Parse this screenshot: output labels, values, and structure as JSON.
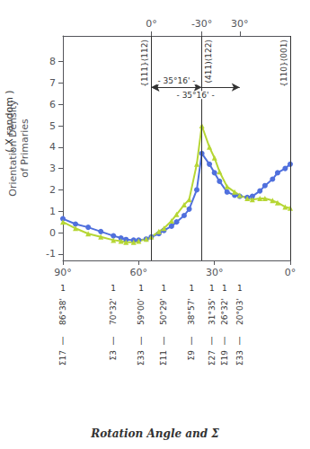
{
  "chart_data": {
    "type": "line",
    "xlabel": "Rotation Angle and Σ",
    "ylabel": "Orientation Density\nof Primaries",
    "ylabel_unit": "( X random )",
    "x": [
      90,
      85,
      80,
      75,
      70,
      67,
      65,
      62,
      60,
      57,
      55,
      52,
      50,
      47,
      45,
      42,
      40,
      37,
      35,
      32,
      30,
      28,
      25,
      22,
      20,
      17,
      15,
      12,
      10,
      7,
      5,
      2,
      0
    ],
    "series": [
      {
        "marker": "circle",
        "values": [
          0.65,
          0.4,
          0.25,
          0.05,
          -0.15,
          -0.25,
          -0.32,
          -0.35,
          -0.35,
          -0.3,
          -0.2,
          -0.05,
          0.1,
          0.3,
          0.5,
          0.8,
          1.1,
          2.0,
          3.7,
          3.2,
          2.8,
          2.4,
          1.9,
          1.75,
          1.7,
          1.65,
          1.7,
          1.95,
          2.2,
          2.5,
          2.8,
          3.0,
          3.2
        ]
      },
      {
        "marker": "triangle",
        "values": [
          0.5,
          0.2,
          -0.05,
          -0.2,
          -0.35,
          -0.4,
          -0.45,
          -0.45,
          -0.4,
          -0.3,
          -0.2,
          0.05,
          0.2,
          0.55,
          0.85,
          1.3,
          1.55,
          3.2,
          5.0,
          4.0,
          3.5,
          2.85,
          2.15,
          1.9,
          1.75,
          1.6,
          1.55,
          1.6,
          1.6,
          1.5,
          1.4,
          1.2,
          1.15
        ]
      }
    ],
    "xlim": [
      90,
      0
    ],
    "xticks": [
      {
        "value": 90,
        "label": "90°"
      },
      {
        "value": 60,
        "label": "60°"
      },
      {
        "value": 30,
        "label": "30°"
      },
      {
        "value": 0,
        "label": "0°"
      }
    ],
    "x2ticks": [
      {
        "value": 55,
        "label": "0°"
      },
      {
        "value": 35,
        "label": "-30°"
      },
      {
        "value": 20,
        "label": "30°"
      }
    ],
    "ylim": [
      -1.3,
      9.2
    ],
    "yticks": [
      -1,
      0,
      1,
      2,
      3,
      4,
      5,
      6,
      7,
      8
    ],
    "grid": false,
    "vlines": [
      {
        "x": 55,
        "label": "{111}⟨112⟩"
      },
      {
        "x": 35,
        "label": "(411)⟨122⟩"
      },
      {
        "x": 0,
        "label": "{110}⟨001⟩"
      }
    ],
    "arrows": [
      {
        "x1": 55,
        "x2": 35,
        "y": 6.8,
        "label": "- 35°16' -"
      },
      {
        "x1": 55,
        "x2": 20,
        "y": 6.8,
        "label": "- 35°16' -"
      }
    ],
    "bottom_labels": [
      {
        "x": 90,
        "texts": [
          "1",
          "86°38'",
          "|",
          "Σ17"
        ]
      },
      {
        "x": 70,
        "texts": [
          "1",
          "70°32'",
          "|",
          "Σ3"
        ]
      },
      {
        "x": 59,
        "texts": [
          "1",
          "59°00'",
          "|",
          "Σ33"
        ]
      },
      {
        "x": 50,
        "texts": [
          "1",
          "50°29'",
          "|",
          "Σ11"
        ]
      },
      {
        "x": 39,
        "texts": [
          "1",
          "38°57'",
          "|",
          "Σ9"
        ]
      },
      {
        "x": 31,
        "texts": [
          "1",
          "31°35'",
          "|",
          "Σ27"
        ]
      },
      {
        "x": 26,
        "texts": [
          "1",
          "26°32'",
          "|",
          "Σ19"
        ]
      },
      {
        "x": 20,
        "texts": [
          "1",
          "20°03'",
          "|",
          "Σ33"
        ]
      }
    ]
  }
}
